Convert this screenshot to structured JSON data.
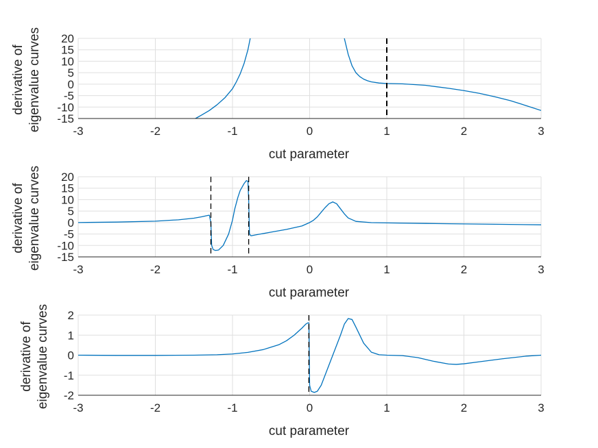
{
  "chart_data": [
    {
      "type": "line",
      "xlabel": "cut parameter",
      "ylabel": [
        "derivative of",
        "eigenvalue curves"
      ],
      "xlim": [
        -3,
        3
      ],
      "ylim": [
        -15,
        20
      ],
      "xticks": [
        "-3",
        "-2",
        "-1",
        "0",
        "1",
        "2",
        "3"
      ],
      "yticks": [
        "-15",
        "-10",
        "-5",
        "0",
        "5",
        "10",
        "15",
        "20"
      ],
      "grid": true,
      "vlines": [
        {
          "x": 1,
          "width": 2
        }
      ],
      "series": [
        {
          "color": "#0072bd",
          "segments": [
            [
              [
                -1.48,
                -15
              ],
              [
                -1.4,
                -13.5
              ],
              [
                -1.3,
                -11.5
              ],
              [
                -1.2,
                -9
              ],
              [
                -1.1,
                -6
              ],
              [
                -1.0,
                -2
              ],
              [
                -0.95,
                1
              ],
              [
                -0.9,
                4.5
              ],
              [
                -0.85,
                9
              ],
              [
                -0.8,
                15
              ],
              [
                -0.77,
                20
              ]
            ],
            [
              [
                0.45,
                20
              ],
              [
                0.5,
                13
              ],
              [
                0.55,
                8
              ],
              [
                0.6,
                5
              ],
              [
                0.65,
                3.3
              ],
              [
                0.7,
                2.2
              ],
              [
                0.75,
                1.5
              ],
              [
                0.8,
                1.0
              ],
              [
                0.9,
                0.5
              ],
              [
                1.0,
                0.3
              ],
              [
                1.2,
                0.15
              ],
              [
                1.5,
                -0.5
              ],
              [
                1.8,
                -1.8
              ],
              [
                2.0,
                -2.8
              ],
              [
                2.2,
                -4
              ],
              [
                2.4,
                -5.5
              ],
              [
                2.6,
                -7.2
              ],
              [
                2.8,
                -9.3
              ],
              [
                3.0,
                -11.5
              ]
            ]
          ]
        }
      ]
    },
    {
      "type": "line",
      "xlabel": "cut parameter",
      "ylabel": [
        "derivative of",
        "eigenvalue curves"
      ],
      "xlim": [
        -3,
        3
      ],
      "ylim": [
        -15,
        20
      ],
      "xticks": [
        "-3",
        "-2",
        "-1",
        "0",
        "1",
        "2",
        "3"
      ],
      "yticks": [
        "-15",
        "-10",
        "-5",
        "0",
        "5",
        "10",
        "15",
        "20"
      ],
      "grid": true,
      "vlines": [
        {
          "x": -1.28,
          "width": 1.3
        },
        {
          "x": -0.79,
          "width": 1.3
        }
      ],
      "series": [
        {
          "color": "#0072bd",
          "segments": [
            [
              [
                -3,
                0
              ],
              [
                -2.5,
                0.2
              ],
              [
                -2.0,
                0.6
              ],
              [
                -1.7,
                1.2
              ],
              [
                -1.5,
                1.9
              ],
              [
                -1.4,
                2.5
              ],
              [
                -1.32,
                3.1
              ],
              [
                -1.3,
                3.2
              ],
              [
                -1.28,
                0
              ],
              [
                -1.27,
                -10
              ],
              [
                -1.25,
                -11.8
              ],
              [
                -1.22,
                -12.2
              ],
              [
                -1.18,
                -12
              ],
              [
                -1.12,
                -10
              ],
              [
                -1.05,
                -5
              ],
              [
                -1.0,
                1
              ],
              [
                -0.97,
                6
              ],
              [
                -0.93,
                11
              ],
              [
                -0.9,
                14
              ],
              [
                -0.85,
                17
              ],
              [
                -0.82,
                18.3
              ],
              [
                -0.8,
                18
              ],
              [
                -0.79,
                10
              ],
              [
                -0.78,
                -5
              ],
              [
                -0.76,
                -5.8
              ],
              [
                -0.7,
                -5.4
              ],
              [
                -0.5,
                -4.2
              ],
              [
                -0.3,
                -3
              ],
              [
                -0.1,
                -1.5
              ],
              [
                0.0,
                0
              ],
              [
                0.05,
                1
              ],
              [
                0.1,
                2.5
              ],
              [
                0.15,
                4.5
              ],
              [
                0.2,
                6.5
              ],
              [
                0.25,
                8.2
              ],
              [
                0.3,
                9
              ],
              [
                0.35,
                8.2
              ],
              [
                0.4,
                6
              ],
              [
                0.45,
                3.8
              ],
              [
                0.5,
                2
              ],
              [
                0.6,
                0.5
              ],
              [
                0.8,
                -0.05
              ],
              [
                1.0,
                -0.15
              ],
              [
                1.5,
                -0.4
              ],
              [
                2.0,
                -0.6
              ],
              [
                2.5,
                -0.8
              ],
              [
                3.0,
                -1.0
              ]
            ]
          ]
        }
      ]
    },
    {
      "type": "line",
      "xlabel": "cut parameter",
      "ylabel": [
        "derivative of",
        "eigenvalue curves"
      ],
      "xlim": [
        -3,
        3
      ],
      "ylim": [
        -2,
        2
      ],
      "xticks": [
        "-3",
        "-2",
        "-1",
        "0",
        "1",
        "2",
        "3"
      ],
      "yticks": [
        "-2",
        "-1",
        "0",
        "1",
        "2"
      ],
      "grid": true,
      "vlines": [
        {
          "x": -0.01,
          "width": 1.3
        }
      ],
      "series": [
        {
          "color": "#0072bd",
          "segments": [
            [
              [
                -3,
                0
              ],
              [
                -2.5,
                -0.01
              ],
              [
                -2.0,
                -0.01
              ],
              [
                -1.5,
                0
              ],
              [
                -1.2,
                0.02
              ],
              [
                -1.0,
                0.06
              ],
              [
                -0.8,
                0.14
              ],
              [
                -0.6,
                0.28
              ],
              [
                -0.4,
                0.52
              ],
              [
                -0.3,
                0.72
              ],
              [
                -0.2,
                1.0
              ],
              [
                -0.1,
                1.35
              ],
              [
                -0.05,
                1.55
              ],
              [
                -0.02,
                1.62
              ],
              [
                -0.01,
                1.6
              ],
              [
                0.0,
                -1.5
              ],
              [
                0.02,
                -1.8
              ],
              [
                0.06,
                -1.86
              ],
              [
                0.1,
                -1.8
              ],
              [
                0.15,
                -1.5
              ],
              [
                0.2,
                -1.0
              ],
              [
                0.3,
                0.0
              ],
              [
                0.4,
                1.0
              ],
              [
                0.45,
                1.55
              ],
              [
                0.5,
                1.83
              ],
              [
                0.55,
                1.78
              ],
              [
                0.6,
                1.4
              ],
              [
                0.7,
                0.6
              ],
              [
                0.8,
                0.15
              ],
              [
                0.9,
                0.02
              ],
              [
                1.0,
                0.0
              ],
              [
                1.2,
                -0.02
              ],
              [
                1.4,
                -0.12
              ],
              [
                1.6,
                -0.3
              ],
              [
                1.8,
                -0.44
              ],
              [
                1.9,
                -0.46
              ],
              [
                2.0,
                -0.43
              ],
              [
                2.2,
                -0.33
              ],
              [
                2.5,
                -0.18
              ],
              [
                2.8,
                -0.05
              ],
              [
                3.0,
                0.0
              ]
            ]
          ]
        }
      ]
    }
  ]
}
